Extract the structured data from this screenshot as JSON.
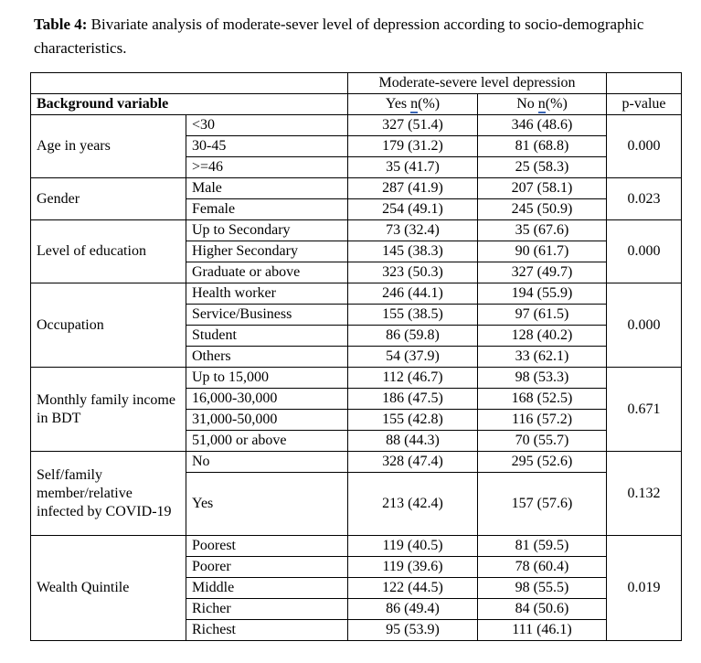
{
  "caption": {
    "label": "Table 4:",
    "text": " Bivariate analysis of moderate-sever level of depression according to socio-demographic characteristics."
  },
  "table": {
    "header": {
      "span_title": "Moderate-severe level depression",
      "background_variable": "Background variable",
      "yes_prefix": "Yes ",
      "no_prefix": "No ",
      "n_label": "n",
      "pct_suffix": "(%)",
      "p_value": "p-value"
    },
    "underline_color": "#3a66b5",
    "groups": [
      {
        "label": "Age in years",
        "p": "0.000",
        "rows": [
          {
            "category": "<30",
            "yes": "327 (51.4)",
            "no": "346 (48.6)"
          },
          {
            "category": "30-45",
            "yes": "179 (31.2)",
            "no": "81 (68.8)"
          },
          {
            "category": ">=46",
            "yes": "35 (41.7)",
            "no": "25 (58.3)"
          }
        ]
      },
      {
        "label": "Gender",
        "p": "0.023",
        "rows": [
          {
            "category": "Male",
            "yes": "287 (41.9)",
            "no": "207 (58.1)"
          },
          {
            "category": "Female",
            "yes": "254 (49.1)",
            "no": "245 (50.9)"
          }
        ]
      },
      {
        "label": "Level of education",
        "p": "0.000",
        "rows": [
          {
            "category": "Up to Secondary",
            "yes": "73 (32.4)",
            "no": "35 (67.6)"
          },
          {
            "category": "Higher Secondary",
            "yes": "145 (38.3)",
            "no": "90 (61.7)"
          },
          {
            "category": "Graduate or above",
            "yes": "323 (50.3)",
            "no": "327 (49.7)"
          }
        ]
      },
      {
        "label": "Occupation",
        "p": "0.000",
        "rows": [
          {
            "category": "Health worker",
            "yes": "246 (44.1)",
            "no": "194 (55.9)"
          },
          {
            "category": "Service/Business",
            "yes": "155 (38.5)",
            "no": "97 (61.5)"
          },
          {
            "category": "Student",
            "yes": "86 (59.8)",
            "no": "128 (40.2)"
          },
          {
            "category": "Others",
            "yes": "54 (37.9)",
            "no": "33 (62.1)"
          }
        ]
      },
      {
        "label": "Monthly family income in BDT",
        "p": "0.671",
        "rows": [
          {
            "category": "Up to 15,000",
            "yes": "112 (46.7)",
            "no": "98 (53.3)"
          },
          {
            "category": "16,000-30,000",
            "yes": "186 (47.5)",
            "no": "168 (52.5)"
          },
          {
            "category": "31,000-50,000",
            "yes": "155 (42.8)",
            "no": "116 (57.2)"
          },
          {
            "category": "51,000 or above",
            "yes": "88 (44.3)",
            "no": "70 (55.7)"
          }
        ]
      },
      {
        "label": "Self/family member/relative infected by COVID-19",
        "p": "0.132",
        "rows": [
          {
            "category": "No",
            "yes": "328 (47.4)",
            "no": "295 (52.6)"
          },
          {
            "category": "Yes",
            "yes": "213 (42.4)",
            "no": "157 (57.6)"
          }
        ]
      },
      {
        "label": "Wealth Quintile",
        "p": "0.019",
        "rows": [
          {
            "category": "Poorest",
            "yes": "119 (40.5)",
            "no": "81 (59.5)"
          },
          {
            "category": "Poorer",
            "yes": "119 (39.6)",
            "no": "78 (60.4)"
          },
          {
            "category": "Middle",
            "yes": "122 (44.5)",
            "no": "98 (55.5)"
          },
          {
            "category": "Richer",
            "yes": "86 (49.4)",
            "no": "84 (50.6)"
          },
          {
            "category": "Richest",
            "yes": "95 (53.9)",
            "no": "111 (46.1)"
          }
        ]
      }
    ]
  }
}
